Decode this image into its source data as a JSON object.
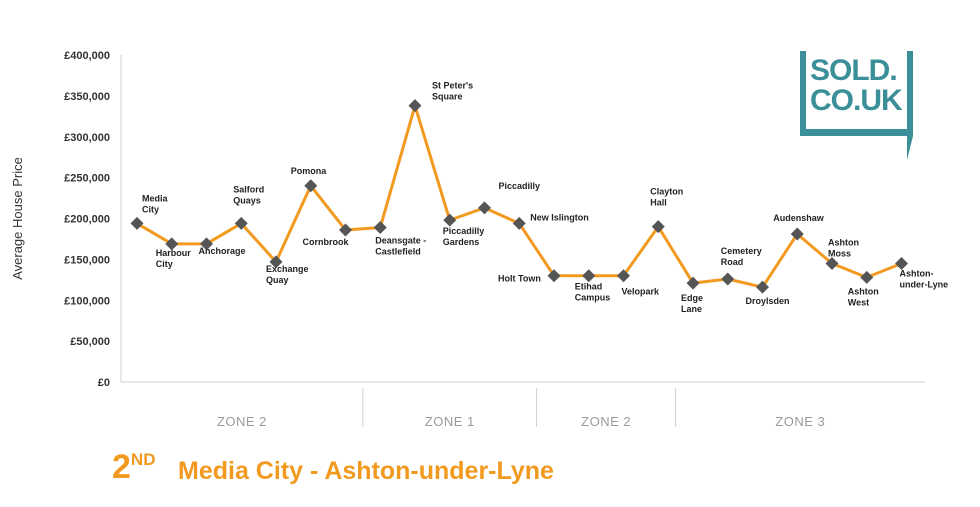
{
  "chart_data": {
    "type": "line",
    "ylabel": "Average House Price",
    "xlabel": "",
    "ylim": [
      0,
      400000
    ],
    "yticks": [
      0,
      50000,
      100000,
      150000,
      200000,
      250000,
      300000,
      350000,
      400000
    ],
    "ytick_labels": [
      "£0",
      "£50,000",
      "£100,000",
      "£150,000",
      "£200,000",
      "£250,000",
      "£300,000",
      "£350,000",
      "£400,000"
    ],
    "grid": false,
    "line_color": "#F29A1F",
    "marker_color": "#555555",
    "points": [
      {
        "label": [
          "Media",
          "City"
        ],
        "value": 194000
      },
      {
        "label": [
          "Harbour",
          "City"
        ],
        "value": 169000
      },
      {
        "label": [
          "Anchorage"
        ],
        "value": 169000
      },
      {
        "label": [
          "Salford",
          "Quays"
        ],
        "value": 194000
      },
      {
        "label": [
          "Exchange",
          "Quay"
        ],
        "value": 147000
      },
      {
        "label": [
          "Pomona"
        ],
        "value": 240000
      },
      {
        "label": [
          "Cornbrook"
        ],
        "value": 186000
      },
      {
        "label": [
          "Deansgate -",
          "Castlefield"
        ],
        "value": 189000
      },
      {
        "label": [
          "St Peter's",
          "Square"
        ],
        "value": 338000
      },
      {
        "label": [
          "Piccadilly",
          "Gardens"
        ],
        "value": 198000
      },
      {
        "label": [
          "Piccadilly"
        ],
        "value": 213000
      },
      {
        "label": [
          "New Islington"
        ],
        "value": 194000
      },
      {
        "label": [
          "Holt Town"
        ],
        "value": 130000
      },
      {
        "label": [
          "Etihad",
          "Campus"
        ],
        "value": 130000
      },
      {
        "label": [
          "Velopark"
        ],
        "value": 130000
      },
      {
        "label": [
          "Clayton",
          "Hall"
        ],
        "value": 190000
      },
      {
        "label": [
          "Edge",
          "Lane"
        ],
        "value": 121000
      },
      {
        "label": [
          "Cemetery",
          "Road"
        ],
        "value": 126000
      },
      {
        "label": [
          "Droylsden"
        ],
        "value": 116000
      },
      {
        "label": [
          "Audenshaw"
        ],
        "value": 181000
      },
      {
        "label": [
          "Ashton",
          "Moss"
        ],
        "value": 145000
      },
      {
        "label": [
          "Ashton",
          "West"
        ],
        "value": 128000
      },
      {
        "label": [
          "Ashton-",
          "under-Lyne"
        ],
        "value": 145000
      }
    ],
    "zones": [
      {
        "label": "ZONE 2",
        "from": 0,
        "to": 6
      },
      {
        "label": "ZONE 1",
        "from": 7,
        "to": 11
      },
      {
        "label": "ZONE 2",
        "from": 12,
        "to": 15
      },
      {
        "label": "ZONE 3",
        "from": 16,
        "to": 22
      }
    ]
  },
  "caption": {
    "rank_number": "2",
    "rank_suffix": "ND",
    "route": "Media City - Ashton-under-Lyne",
    "color": "#F29A1F"
  },
  "logo": {
    "line1": "SOLD.",
    "line2": "CO.UK",
    "color": "#3A8F98"
  }
}
